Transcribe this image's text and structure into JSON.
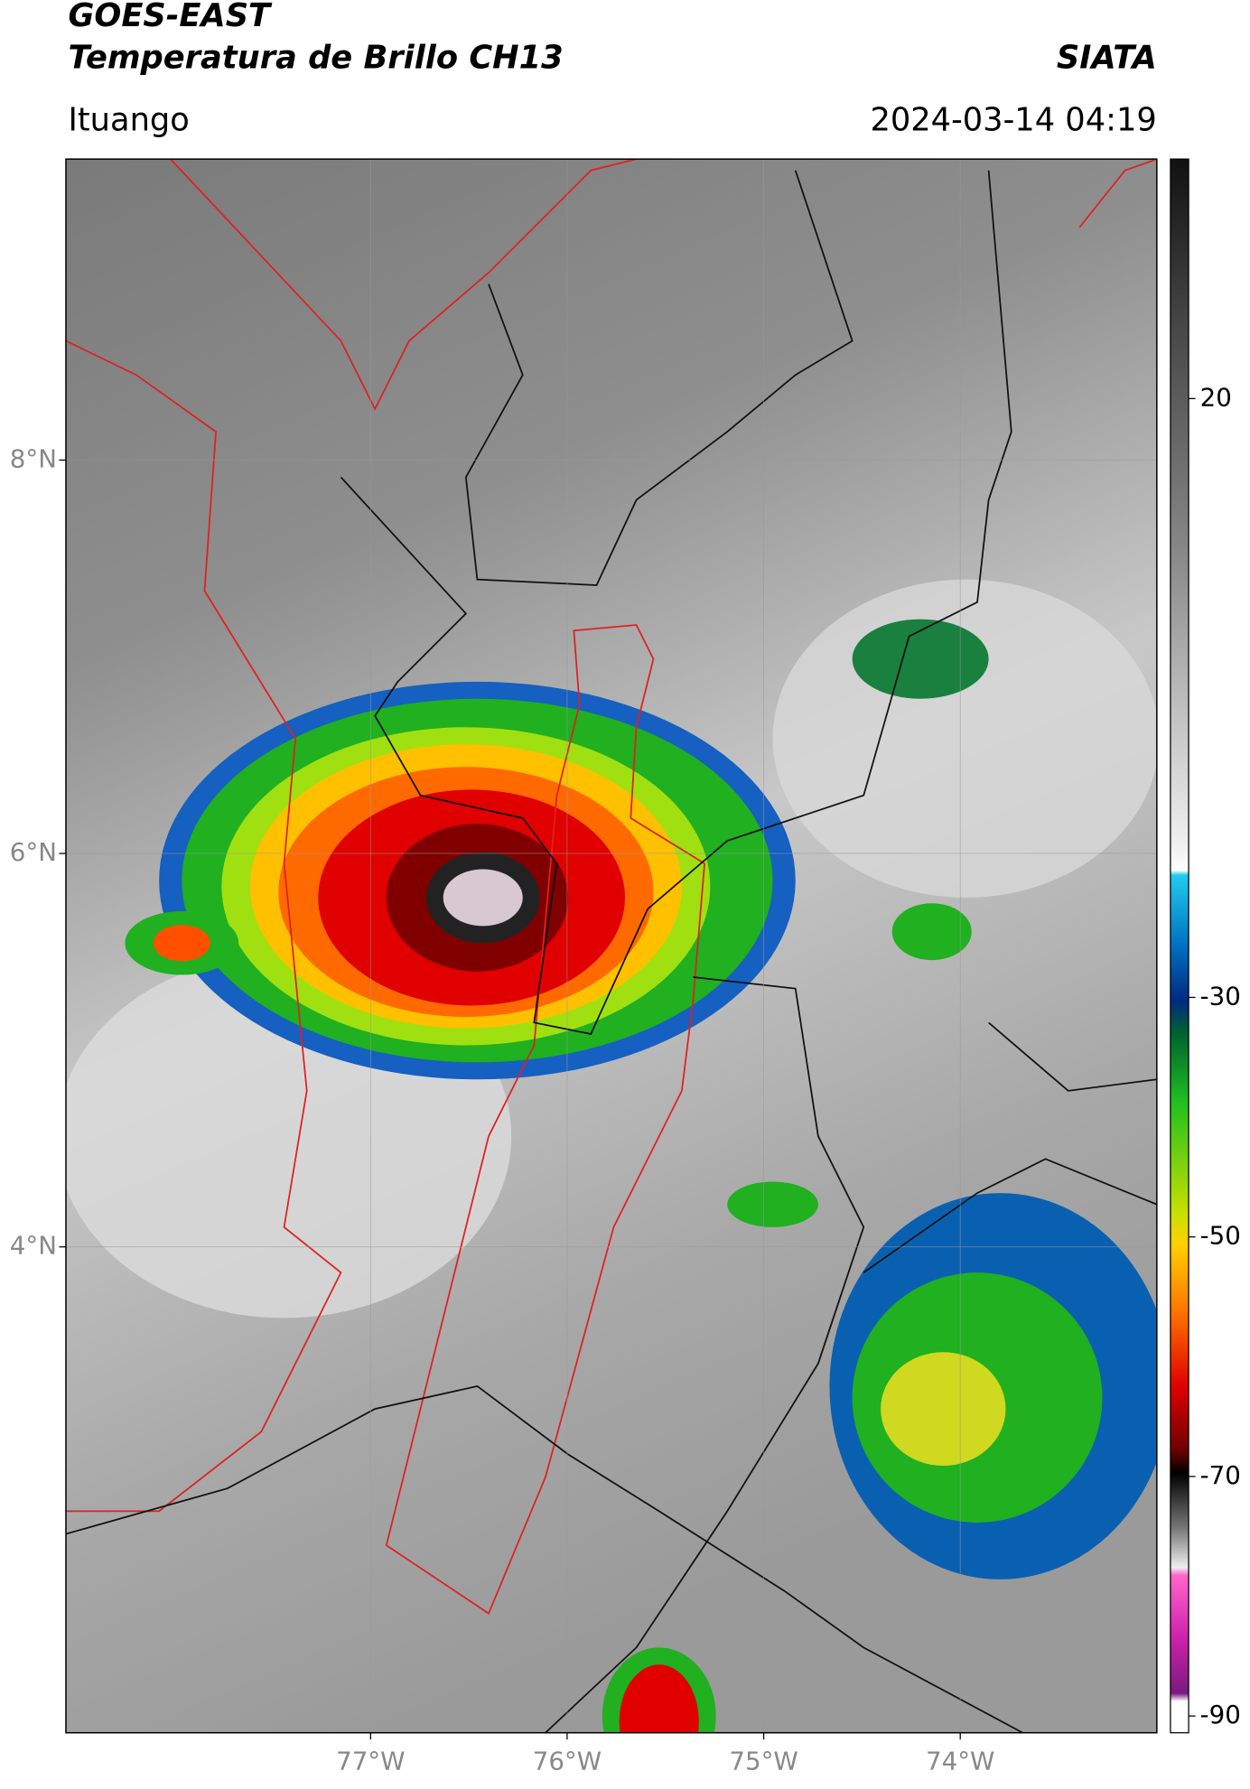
{
  "header": {
    "satellite": "GOES-EAST",
    "product": "Temperatura de Brillo CH13",
    "organization": "SIATA",
    "location": "Ituango",
    "datetime": "2024-03-14 04:19"
  },
  "map": {
    "xlim": [
      -78.55,
      -73.0
    ],
    "ylim": [
      1.53,
      9.53
    ],
    "lat_ticks": [
      {
        "value": 8,
        "label": "8°N"
      },
      {
        "value": 6,
        "label": "6°N"
      },
      {
        "value": 4,
        "label": "4°N"
      }
    ],
    "lon_ticks": [
      {
        "value": -77,
        "label": "77°W"
      },
      {
        "value": -76,
        "label": "76°W"
      },
      {
        "value": -75,
        "label": "75°W"
      },
      {
        "value": -74,
        "label": "74°W"
      }
    ]
  },
  "colorbar": {
    "lim": [
      -91.4,
      40
    ],
    "ticks": [
      20,
      -30,
      -50,
      -70,
      -90
    ]
  }
}
